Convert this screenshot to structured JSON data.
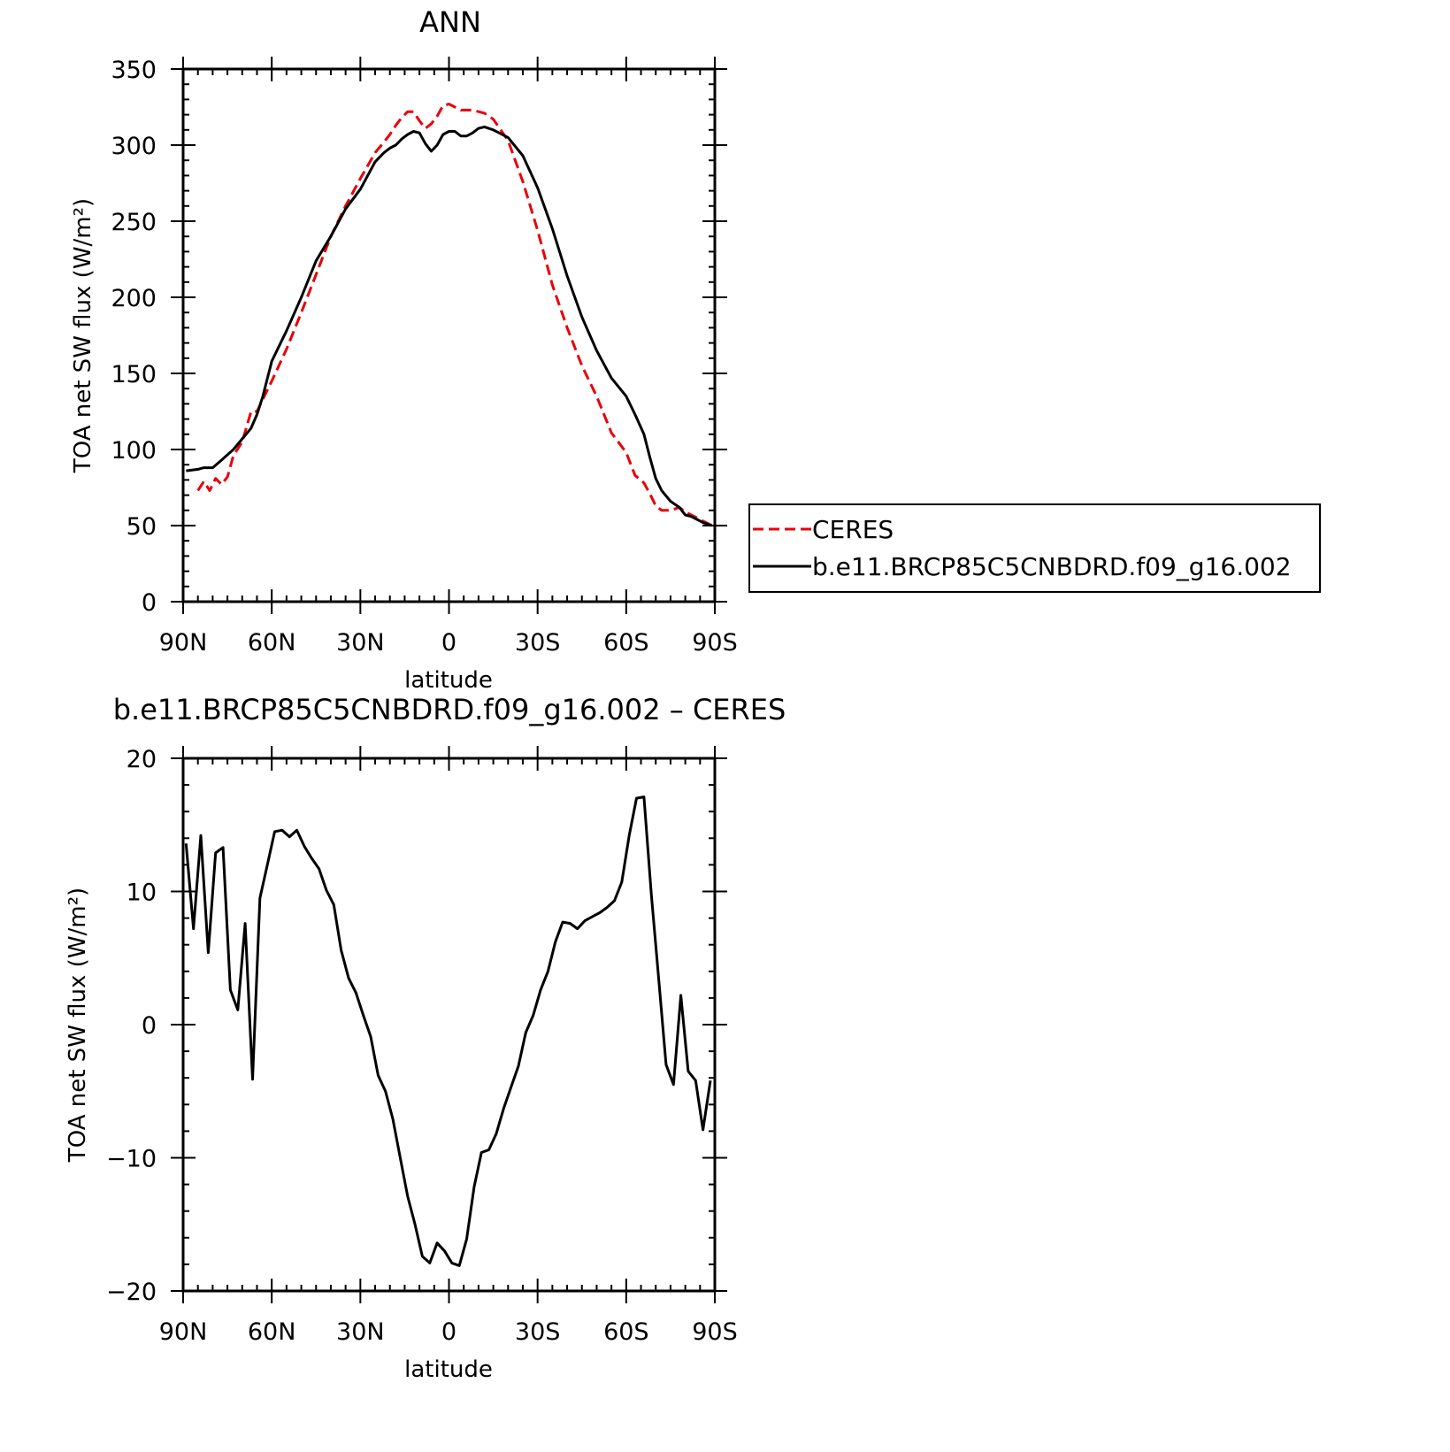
{
  "chart_data": [
    {
      "type": "line",
      "title": "ANN",
      "xlabel": "latitude",
      "ylabel": "TOA net SW flux (W/m²)",
      "x_order": "north-to-south",
      "xlim": [
        90,
        -90
      ],
      "ylim": [
        0,
        350
      ],
      "xticks": [
        "90N",
        "60N",
        "30N",
        "0",
        "30S",
        "60S",
        "90S"
      ],
      "yticks": [
        "0",
        "50",
        "100",
        "150",
        "200",
        "250",
        "300",
        "350"
      ],
      "legend": {
        "position": "right",
        "entries": [
          {
            "label": "CERES",
            "color": "#e8000b",
            "style": "dashed"
          },
          {
            "label": "b.e11.BRCP85C5CNBDRD.f09_g16.002",
            "color": "#000000",
            "style": "solid"
          }
        ]
      },
      "series": [
        {
          "name": "CERES",
          "color": "#e8000b",
          "style": "dashed",
          "x": [
            85,
            83,
            81,
            79,
            77,
            75,
            73,
            70,
            67,
            65,
            63,
            60,
            55,
            50,
            45,
            40,
            35,
            30,
            25,
            22,
            20,
            18,
            16,
            14,
            12,
            10,
            8,
            6,
            4,
            2,
            0,
            -2,
            -4,
            -6,
            -8,
            -10,
            -12,
            -15,
            -20,
            -25,
            -30,
            -35,
            -40,
            -45,
            -50,
            -55,
            -60,
            -63,
            -66,
            -68,
            -70,
            -72,
            -75,
            -78,
            -80,
            -82,
            -84,
            -86,
            -89
          ],
          "y": [
            73,
            79,
            73,
            81,
            77,
            82,
            96,
            105,
            125,
            125,
            133,
            145,
            166,
            190,
            215,
            240,
            260,
            278,
            295,
            302,
            307,
            313,
            318,
            322,
            322,
            316,
            311,
            314,
            319,
            326,
            327,
            325,
            323,
            323,
            323,
            322,
            321,
            317,
            303,
            276,
            244,
            208,
            180,
            155,
            135,
            111,
            98,
            83,
            78,
            71,
            63,
            60,
            60,
            62,
            59,
            57,
            55,
            53,
            50
          ]
        },
        {
          "name": "b.e11.BRCP85C5CNBDRD.f09_g16.002",
          "color": "#000000",
          "style": "solid",
          "x": [
            89,
            85,
            83,
            80,
            77,
            73,
            70,
            67,
            65,
            63,
            60,
            55,
            50,
            45,
            40,
            35,
            30,
            25,
            22,
            20,
            18,
            16,
            14,
            12,
            10,
            8,
            6,
            4,
            2,
            0,
            -2,
            -4,
            -6,
            -8,
            -10,
            -12,
            -15,
            -20,
            -25,
            -30,
            -35,
            -40,
            -45,
            -50,
            -55,
            -60,
            -63,
            -66,
            -68,
            -70,
            -72,
            -75,
            -78,
            -80,
            -82,
            -84,
            -86,
            -89
          ],
          "y": [
            86,
            87,
            88,
            88,
            93,
            100,
            107,
            114,
            123,
            135,
            158,
            178,
            200,
            224,
            240,
            258,
            271,
            289,
            295,
            298,
            300,
            304,
            307,
            309,
            308,
            301,
            296,
            300,
            307,
            309,
            309,
            306,
            306,
            308,
            311,
            312,
            310,
            305,
            293,
            272,
            245,
            214,
            187,
            165,
            147,
            135,
            123,
            110,
            95,
            81,
            73,
            66,
            62,
            57,
            56,
            54,
            52,
            50
          ]
        }
      ]
    },
    {
      "type": "line",
      "title": "b.e11.BRCP85C5CNBDRD.f09_g16.002 – CERES",
      "xlabel": "latitude",
      "ylabel": "TOA net SW flux (W/m²)",
      "x_order": "north-to-south",
      "xlim": [
        90,
        -90
      ],
      "ylim": [
        -20,
        20
      ],
      "xticks": [
        "90N",
        "60N",
        "30N",
        "0",
        "30S",
        "60S",
        "90S"
      ],
      "yticks": [
        "−20",
        "−10",
        "0",
        "10",
        "20"
      ],
      "series": [
        {
          "color": "#000000",
          "style": "solid",
          "x": [
            89,
            86.5,
            84,
            81.5,
            79,
            76.5,
            74,
            71.5,
            69,
            66.5,
            64,
            61.5,
            59,
            56.5,
            54,
            51.5,
            49,
            46.5,
            44,
            41.5,
            39,
            36.5,
            34,
            31.5,
            29,
            26.5,
            24,
            21.5,
            19,
            16.5,
            14,
            11.5,
            9,
            6.5,
            4,
            1.5,
            -1,
            -3.5,
            -6,
            -8.5,
            -11,
            -13.5,
            -16,
            -18.5,
            -21,
            -23.5,
            -26,
            -28.5,
            -31,
            -33.5,
            -36,
            -38.5,
            -41,
            -43.5,
            -46,
            -48.5,
            -51,
            -53.5,
            -56,
            -58.5,
            -61,
            -63.5,
            -66,
            -68.5,
            -71,
            -73.5,
            -76,
            -78.5,
            -81,
            -83.5,
            -86,
            -88.5
          ],
          "y": [
            13.6,
            7.2,
            14.2,
            5.4,
            12.9,
            13.3,
            2.6,
            1.1,
            7.6,
            -4.1,
            9.5,
            12.0,
            14.5,
            14.6,
            14.1,
            14.6,
            13.4,
            12.5,
            11.7,
            10.1,
            9.0,
            5.6,
            3.5,
            2.4,
            0.7,
            -0.9,
            -3.8,
            -5.0,
            -7.1,
            -10.0,
            -12.9,
            -15.0,
            -17.4,
            -17.9,
            -16.4,
            -17.0,
            -17.9,
            -18.1,
            -16.1,
            -12.2,
            -9.6,
            -9.4,
            -8.2,
            -6.3,
            -4.7,
            -3.1,
            -0.6,
            0.7,
            2.6,
            4.0,
            6.2,
            7.7,
            7.6,
            7.2,
            7.8,
            8.1,
            8.4,
            8.8,
            9.3,
            10.7,
            14.2,
            17.0,
            17.1,
            9.8,
            3.4,
            -3.0,
            -4.5,
            2.2,
            -3.5,
            -4.2,
            -7.9,
            -4.2
          ]
        }
      ]
    }
  ]
}
